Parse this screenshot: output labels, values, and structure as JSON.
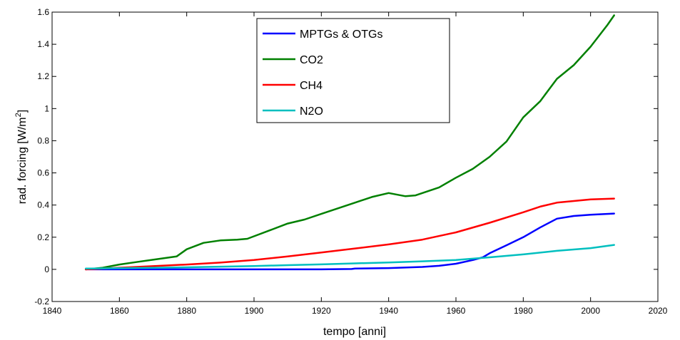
{
  "chart_data": {
    "type": "line",
    "xlabel": "tempo [anni]",
    "ylabel": "rad. forcing [W/m",
    "ylabel_sup": "2",
    "ylabel_tail": "]",
    "xlim": [
      1840,
      2020
    ],
    "ylim": [
      -0.2,
      1.6
    ],
    "xticks": [
      1840,
      1860,
      1880,
      1900,
      1920,
      1940,
      1960,
      1980,
      2000,
      2020
    ],
    "yticks": [
      -0.2,
      0,
      0.2,
      0.4,
      0.6,
      0.8,
      1,
      1.2,
      1.4,
      1.6
    ],
    "ytick_labels": [
      "-0.2",
      "0",
      "0.2",
      "0.4",
      "0.6",
      "0.8",
      "1",
      "1.2",
      "1.4",
      "1.6"
    ],
    "grid": false,
    "legend_position": "top-center",
    "series": [
      {
        "name": "MPTGs & OTGs",
        "color": "#0000ff",
        "x": [
          1850,
          1860,
          1870,
          1880,
          1890,
          1900,
          1910,
          1920,
          1929,
          1930,
          1940,
          1950,
          1955,
          1960,
          1965,
          1968,
          1970,
          1975,
          1980,
          1985,
          1990,
          1995,
          2000,
          2007
        ],
        "y": [
          0.0,
          0.0,
          0.0,
          0.0,
          0.0,
          0.0,
          0.0,
          0.0,
          0.002,
          0.005,
          0.008,
          0.015,
          0.022,
          0.035,
          0.058,
          0.075,
          0.1,
          0.15,
          0.2,
          0.26,
          0.315,
          0.332,
          0.34,
          0.347
        ]
      },
      {
        "name": "CO2",
        "color": "#008000",
        "x": [
          1850,
          1855,
          1860,
          1865,
          1870,
          1877,
          1880,
          1885,
          1890,
          1895,
          1898,
          1905,
          1910,
          1915,
          1920,
          1925,
          1930,
          1935,
          1940,
          1945,
          1948,
          1955,
          1960,
          1965,
          1970,
          1975,
          1980,
          1985,
          1990,
          1995,
          2000,
          2005,
          2007
        ],
        "y": [
          0.0,
          0.01,
          0.03,
          0.045,
          0.06,
          0.08,
          0.125,
          0.165,
          0.18,
          0.185,
          0.19,
          0.245,
          0.285,
          0.31,
          0.345,
          0.38,
          0.415,
          0.45,
          0.475,
          0.455,
          0.46,
          0.51,
          0.57,
          0.625,
          0.7,
          0.795,
          0.945,
          1.045,
          1.185,
          1.27,
          1.385,
          1.52,
          1.58
        ]
      },
      {
        "name": "CH4",
        "color": "#ff0000",
        "x": [
          1850,
          1860,
          1870,
          1880,
          1890,
          1900,
          1910,
          1920,
          1930,
          1940,
          1950,
          1960,
          1970,
          1980,
          1985,
          1990,
          1995,
          2000,
          2007
        ],
        "y": [
          0.0,
          0.01,
          0.02,
          0.03,
          0.042,
          0.058,
          0.08,
          0.105,
          0.13,
          0.155,
          0.185,
          0.23,
          0.29,
          0.355,
          0.39,
          0.415,
          0.425,
          0.435,
          0.44
        ]
      },
      {
        "name": "N2O",
        "color": "#00bfbf",
        "x": [
          1850,
          1860,
          1870,
          1880,
          1890,
          1900,
          1910,
          1920,
          1930,
          1940,
          1950,
          1960,
          1970,
          1980,
          1990,
          2000,
          2007
        ],
        "y": [
          0.005,
          0.007,
          0.01,
          0.013,
          0.017,
          0.021,
          0.026,
          0.031,
          0.037,
          0.043,
          0.05,
          0.058,
          0.075,
          0.093,
          0.115,
          0.132,
          0.152
        ]
      }
    ]
  }
}
